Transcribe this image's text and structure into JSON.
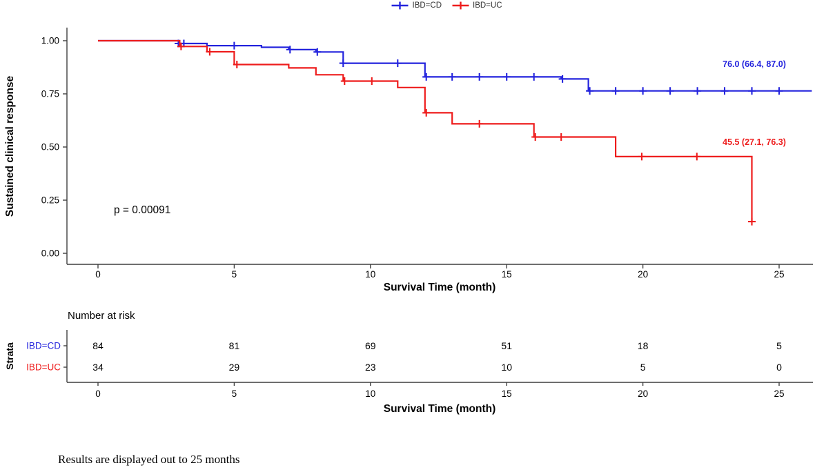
{
  "legend": {
    "items": [
      {
        "label": "IBD=CD"
      },
      {
        "label": "IBD=UC"
      }
    ]
  },
  "chart_data": {
    "type": "line",
    "subtype": "kaplan-meier-step",
    "title": "",
    "xlabel": "Survival Time (month)",
    "ylabel": "Sustained clinical response",
    "x_ticks": [
      0,
      5,
      10,
      15,
      20,
      25
    ],
    "y_ticks": [
      {
        "v": 0.0,
        "label": "0.00"
      },
      {
        "v": 0.25,
        "label": "0.25"
      },
      {
        "v": 0.5,
        "label": "0.50"
      },
      {
        "v": 0.75,
        "label": "0.75"
      },
      {
        "v": 1.0,
        "label": "1.00"
      }
    ],
    "xlim": [
      0,
      26.2
    ],
    "ylim": [
      0,
      1
    ],
    "grid": false,
    "legend_position": "top",
    "p_value_label": "p = 0.00091",
    "series": [
      {
        "name": "IBD=CD",
        "color": "#2424dd",
        "annotation": "76.0 (66.4, 87.0)",
        "steps": [
          [
            0,
            1.0
          ],
          [
            3,
            0.987
          ],
          [
            4,
            0.977
          ],
          [
            6,
            0.969
          ],
          [
            7,
            0.958
          ],
          [
            8,
            0.947
          ],
          [
            9,
            0.894
          ],
          [
            12,
            0.83
          ],
          [
            17,
            0.82
          ],
          [
            18,
            0.764
          ]
        ],
        "end_x": 26.2,
        "censors": [
          [
            2.95,
            0.987
          ],
          [
            3.15,
            0.987
          ],
          [
            5.0,
            0.977
          ],
          [
            7.05,
            0.958
          ],
          [
            8.05,
            0.947
          ],
          [
            9.0,
            0.894
          ],
          [
            11.0,
            0.894
          ],
          [
            12.05,
            0.83
          ],
          [
            13,
            0.83
          ],
          [
            14,
            0.83
          ],
          [
            15,
            0.83
          ],
          [
            16,
            0.83
          ],
          [
            17.05,
            0.82
          ],
          [
            18.05,
            0.764
          ],
          [
            19,
            0.764
          ],
          [
            20,
            0.764
          ],
          [
            21,
            0.764
          ],
          [
            22,
            0.764
          ],
          [
            23,
            0.764
          ],
          [
            24,
            0.764
          ],
          [
            25,
            0.764
          ]
        ]
      },
      {
        "name": "IBD=UC",
        "color": "#ee1c1c",
        "annotation": "45.5 (27.1, 76.3)",
        "steps": [
          [
            0,
            1.0
          ],
          [
            3,
            0.973
          ],
          [
            4,
            0.948
          ],
          [
            5,
            0.888
          ],
          [
            7,
            0.872
          ],
          [
            8,
            0.84
          ],
          [
            9,
            0.81
          ],
          [
            11,
            0.78
          ],
          [
            12,
            0.661
          ],
          [
            13,
            0.609
          ],
          [
            16,
            0.547
          ],
          [
            19,
            0.455
          ],
          [
            24,
            0.149
          ]
        ],
        "end_x": 24,
        "censors": [
          [
            3.05,
            0.973
          ],
          [
            4.1,
            0.948
          ],
          [
            5.1,
            0.888
          ],
          [
            9.05,
            0.81
          ],
          [
            10.05,
            0.81
          ],
          [
            12.05,
            0.661
          ],
          [
            14,
            0.609
          ],
          [
            16.05,
            0.547
          ],
          [
            17,
            0.547
          ],
          [
            19.96,
            0.455
          ],
          [
            21.98,
            0.455
          ],
          [
            24,
            0.149
          ]
        ]
      }
    ],
    "risk_table": {
      "title": "Number at risk",
      "axis_label": "Strata",
      "xlabel": "Survival Time (month)",
      "x_ticks": [
        0,
        5,
        10,
        15,
        20,
        25
      ],
      "rows": [
        {
          "label": "IBD=CD",
          "color": "#2424dd",
          "values": [
            "84",
            "81",
            "69",
            "51",
            "18",
            "5"
          ]
        },
        {
          "label": "IBD=UC",
          "color": "#ee1c1c",
          "values": [
            "34",
            "29",
            "23",
            "10",
            "5",
            "0"
          ]
        }
      ]
    }
  },
  "footer": {
    "note": "Results are displayed out to 25 months"
  }
}
